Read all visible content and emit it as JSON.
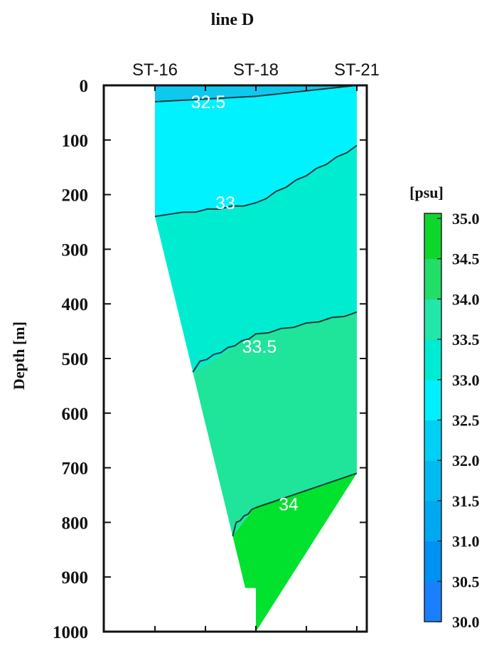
{
  "chart_data": {
    "type": "contour",
    "title": "line D",
    "ylabel": "Depth [m]",
    "xlabel": "",
    "ylim": [
      0,
      1000
    ],
    "y_ticks": [
      "0",
      "100",
      "200",
      "300",
      "400",
      "500",
      "600",
      "700",
      "800",
      "900",
      "1000"
    ],
    "stations": [
      {
        "name": "ST-16",
        "bottom_depth": 240
      },
      {
        "name": "ST-18",
        "bottom_depth": 1000
      },
      {
        "name": "ST-21",
        "bottom_depth": 710
      }
    ],
    "contour_labels": [
      "32.5",
      "33",
      "33.5",
      "34"
    ],
    "contours": [
      {
        "value": 32.5,
        "depths": [
          30,
          20,
          0
        ]
      },
      {
        "value": 33,
        "depths": [
          240,
          215,
          110
        ]
      },
      {
        "value": 33.5,
        "depths": [
          525,
          455,
          415
        ]
      },
      {
        "value": 34,
        "depths": [
          825,
          770,
          710
        ]
      }
    ],
    "colorbar": {
      "unit_label": "[psu]",
      "ticks": [
        "35.0",
        "34.5",
        "34.0",
        "33.5",
        "33.0",
        "32.5",
        "32.0",
        "31.5",
        "31.0",
        "30.5",
        "30.0"
      ],
      "min": 30.0,
      "max": 35.0,
      "colors": [
        "#1a7fff",
        "#0091f5",
        "#00a8f2",
        "#00baf2",
        "#00d0f6",
        "#00f0ff",
        "#00ecd2",
        "#22e6aa",
        "#22dd66",
        "#0fd62a"
      ]
    },
    "fill_colors": {
      "lt_32_5": "#0fc8ee",
      "32_5_33": "#00f2ff",
      "33_33_5": "#00ecd0",
      "33_5_34": "#1ee59a",
      "gt_34": "#00e22d"
    },
    "colors": {
      "frame": "#111111",
      "contour_line": "#1a3a40"
    }
  }
}
